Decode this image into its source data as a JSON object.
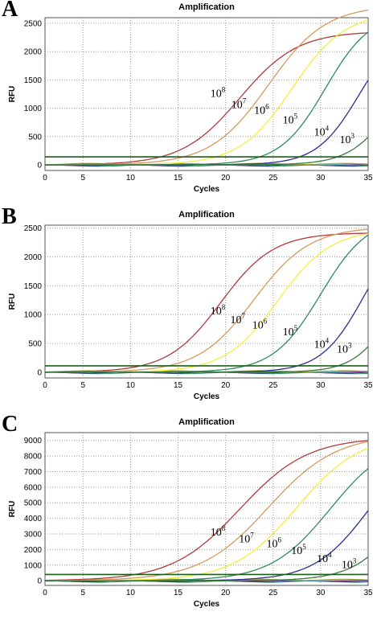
{
  "chart_data": [
    {
      "panel_letter": "A",
      "type": "line",
      "title": "Amplification",
      "xlabel": "Cycles",
      "ylabel": "RFU",
      "xlim": [
        1,
        35
      ],
      "ylim": [
        -100,
        2600
      ],
      "xticks": [
        0,
        5,
        10,
        15,
        20,
        25,
        30,
        35
      ],
      "yticks": [
        0,
        500,
        1000,
        1500,
        2000,
        2500
      ],
      "grid": true,
      "threshold": 140,
      "series": [
        {
          "name": "10^8",
          "color": "#b03a3a",
          "plateau": 2360,
          "midpoint": 21.5,
          "slope": 0.33
        },
        {
          "name": "10^7",
          "color": "#d49a5c",
          "plateau": 2820,
          "midpoint": 24.5,
          "slope": 0.33
        },
        {
          "name": "10^6",
          "color": "#f2f03a",
          "plateau": 2700,
          "midpoint": 27.0,
          "slope": 0.36
        },
        {
          "name": "10^5",
          "color": "#2e8c5a",
          "plateau": 2700,
          "midpoint": 30.5,
          "slope": 0.42
        },
        {
          "name": "10^4",
          "color": "#2b2f8c",
          "plateau": 2450,
          "midpoint": 34.0,
          "slope": 0.45
        },
        {
          "name": "10^3",
          "color": "#3a7a3a",
          "plateau": 2000,
          "midpoint": 37.5,
          "slope": 0.45
        }
      ],
      "annotations": [
        {
          "base": "10",
          "exp": "8",
          "x": 18.4,
          "y": 1200
        },
        {
          "base": "10",
          "exp": "7",
          "x": 20.6,
          "y": 1000
        },
        {
          "base": "10",
          "exp": "6",
          "x": 23.0,
          "y": 900
        },
        {
          "base": "10",
          "exp": "5",
          "x": 26.0,
          "y": 730
        },
        {
          "base": "10",
          "exp": "4",
          "x": 29.3,
          "y": 520
        },
        {
          "base": "10",
          "exp": "3",
          "x": 32.0,
          "y": 380
        }
      ]
    },
    {
      "panel_letter": "B",
      "type": "line",
      "title": "Amplification",
      "xlabel": "Cycles",
      "ylabel": "RFU",
      "xlim": [
        1,
        35
      ],
      "ylim": [
        -100,
        2550
      ],
      "xticks": [
        0,
        5,
        10,
        15,
        20,
        25,
        30,
        35
      ],
      "yticks": [
        0,
        500,
        1000,
        1500,
        2000,
        2500
      ],
      "grid": true,
      "threshold": 110,
      "series": [
        {
          "name": "10^8",
          "color": "#b03a3a",
          "plateau": 2420,
          "midpoint": 19.5,
          "slope": 0.36
        },
        {
          "name": "10^7",
          "color": "#d49a5c",
          "plateau": 2520,
          "midpoint": 23.0,
          "slope": 0.34
        },
        {
          "name": "10^6",
          "color": "#f2f03a",
          "plateau": 2480,
          "midpoint": 25.5,
          "slope": 0.36
        },
        {
          "name": "10^5",
          "color": "#2e8c5a",
          "plateau": 2700,
          "midpoint": 30.0,
          "slope": 0.4
        },
        {
          "name": "10^4",
          "color": "#2b2f8c",
          "plateau": 2600,
          "midpoint": 34.5,
          "slope": 0.45
        },
        {
          "name": "10^3",
          "color": "#3a7a3a",
          "plateau": 2000,
          "midpoint": 37.5,
          "slope": 0.5
        }
      ],
      "annotations": [
        {
          "base": "10",
          "exp": "8",
          "x": 18.4,
          "y": 1000
        },
        {
          "base": "10",
          "exp": "7",
          "x": 20.5,
          "y": 850
        },
        {
          "base": "10",
          "exp": "6",
          "x": 22.8,
          "y": 760
        },
        {
          "base": "10",
          "exp": "5",
          "x": 26.0,
          "y": 640
        },
        {
          "base": "10",
          "exp": "4",
          "x": 29.3,
          "y": 420
        },
        {
          "base": "10",
          "exp": "3",
          "x": 31.7,
          "y": 340
        }
      ]
    },
    {
      "panel_letter": "C",
      "type": "line",
      "title": "Amplification",
      "xlabel": "Cycles",
      "ylabel": "RFU",
      "xlim": [
        1,
        35
      ],
      "ylim": [
        -300,
        9500
      ],
      "xticks": [
        0,
        5,
        10,
        15,
        20,
        25,
        30,
        35
      ],
      "yticks": [
        0,
        1000,
        2000,
        3000,
        4000,
        5000,
        6000,
        7000,
        8000,
        9000
      ],
      "grid": true,
      "threshold": 400,
      "series": [
        {
          "name": "10^8",
          "color": "#b03a3a",
          "plateau": 9200,
          "midpoint": 21.5,
          "slope": 0.28
        },
        {
          "name": "10^7",
          "color": "#d49a5c",
          "plateau": 9400,
          "midpoint": 24.5,
          "slope": 0.28
        },
        {
          "name": "10^6",
          "color": "#f2f03a",
          "plateau": 9400,
          "midpoint": 27.5,
          "slope": 0.3
        },
        {
          "name": "10^5",
          "color": "#2e8c5a",
          "plateau": 9200,
          "midpoint": 31.0,
          "slope": 0.32
        },
        {
          "name": "10^4",
          "color": "#2b2f8c",
          "plateau": 9000,
          "midpoint": 35.0,
          "slope": 0.35
        },
        {
          "name": "10^3",
          "color": "#3a7a3a",
          "plateau": 8500,
          "midpoint": 39.0,
          "slope": 0.38
        }
      ],
      "annotations": [
        {
          "base": "10",
          "exp": "8",
          "x": 18.4,
          "y": 2900
        },
        {
          "base": "10",
          "exp": "7",
          "x": 21.4,
          "y": 2450
        },
        {
          "base": "10",
          "exp": "6",
          "x": 24.3,
          "y": 2150
        },
        {
          "base": "10",
          "exp": "5",
          "x": 26.9,
          "y": 1700
        },
        {
          "base": "10",
          "exp": "4",
          "x": 29.6,
          "y": 1200
        },
        {
          "base": "10",
          "exp": "3",
          "x": 32.2,
          "y": 800
        }
      ]
    }
  ]
}
